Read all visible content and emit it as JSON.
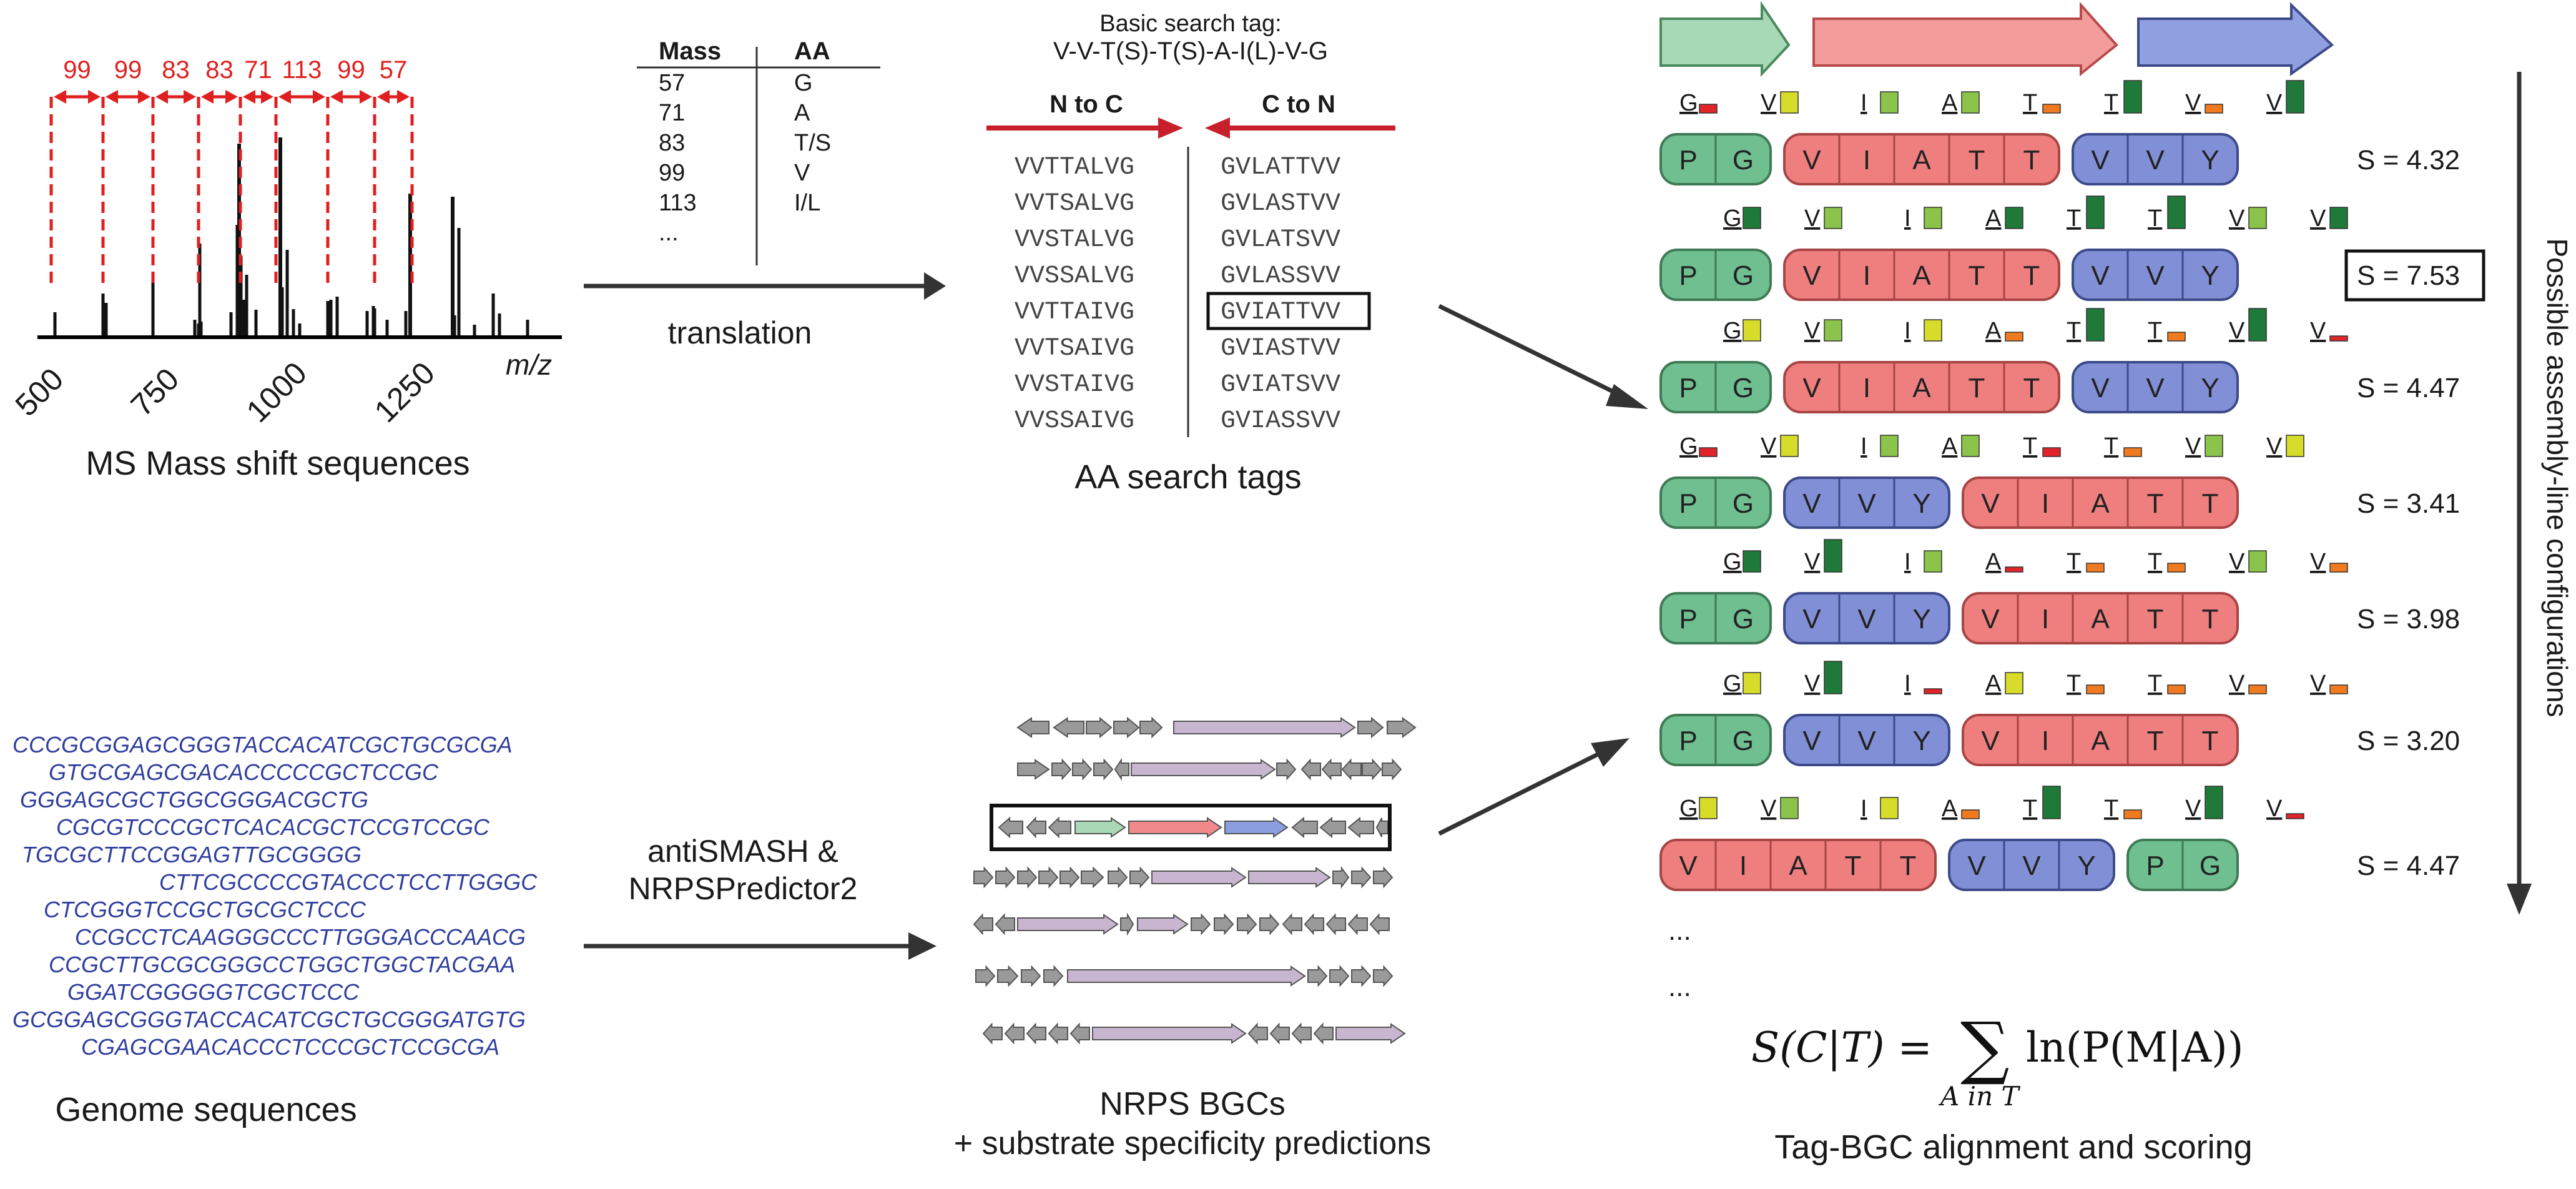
{
  "ms_panel": {
    "caption": "MS Mass shift sequences",
    "mass_shifts": [
      "99",
      "99",
      "83",
      "83",
      "71",
      "113",
      "99",
      "57"
    ],
    "axis_ticks": [
      "500",
      "750",
      "1000",
      "1250"
    ],
    "axis_label": "m/z"
  },
  "mass_table": {
    "headers": [
      "Mass",
      "AA"
    ],
    "rows": [
      [
        "57",
        "G"
      ],
      [
        "71",
        "A"
      ],
      [
        "83",
        "T/S"
      ],
      [
        "99",
        "V"
      ],
      [
        "113",
        "I/L"
      ],
      [
        "...",
        ""
      ]
    ],
    "arrow_label": "translation"
  },
  "tag_panel": {
    "title_line1": "Basic search tag:",
    "title_line2": "V-V-T(S)-T(S)-A-I(L)-V-G",
    "n_to_c_label": "N to C",
    "c_to_n_label": "C to N",
    "n_to_c_tags": [
      "VVTTALVG",
      "VVTSALVG",
      "VVSTALVG",
      "VVSSALVG",
      "VVTTAIVG",
      "VVTSAIVG",
      "VVSTAIVG",
      "VVSSAIVG"
    ],
    "c_to_n_tags": [
      "GVLATTVV",
      "GVLASTVV",
      "GVLATSVV",
      "GVLASSVV",
      "GVIATTVV",
      "GVIASTVV",
      "GVIATSVV",
      "GVIASSVV"
    ],
    "highlighted_index": 4,
    "caption": "AA search tags"
  },
  "genome_panel": {
    "caption": "Genome sequences",
    "lines": [
      "CCCGCGGAGCGGGTACCACATCGCTGCGCGA",
      "GTGCGAGCGACACCCCCGCTCCGC",
      "GGGAGCGCTGGCGGGACGCTG",
      "CGCGTCCCGCTCACACGCTCCGTCCGC",
      "TGCGCTTCCGGAGTTGCGGGG",
      "CTTCGCCCCGTACCCTCCTTGGGC",
      "CTCGGGTCCGCTGCGCTCCC",
      "CCGCCTCAAGGGCCCTTGGGACCCAACG",
      "CCGCTTGCGCGGGCCTGGCTGGCTACGAA",
      "GGATCGGGGGTCGCTCCC",
      "GCGGAGCGGGTACCACATCGCTGCGGGATGTG",
      "CGAGCGAACACCCTCCCGCTCCGCGA"
    ],
    "arrow_label_line1": "antiSMASH &",
    "arrow_label_line2": "NRPSPredictor2"
  },
  "bgc_panel": {
    "caption_line1": "NRPS BGCs",
    "caption_line2": "+ substrate specificity predictions"
  },
  "assembly_panel": {
    "side_label": "Possible assembly-line configurations",
    "caption": "Tag-BGC alignment and scoring",
    "ellipsis": [
      "...",
      "..."
    ],
    "formula_lhs": "S(C|T) =",
    "formula_sum": "∑",
    "formula_sub": "A in T",
    "formula_rhs": "ln(P(M|A))",
    "module_colors": {
      "green": "#6fbf91",
      "red": "#ef7f7f",
      "blue": "#8190d6"
    },
    "rows": [
      {
        "score": "S = 4.32",
        "boxed": false,
        "blocks": [
          {
            "color": "green",
            "residues": [
              "P",
              "G"
            ]
          },
          {
            "color": "red",
            "residues": [
              "V",
              "I",
              "A",
              "T",
              "T"
            ]
          },
          {
            "color": "blue",
            "residues": [
              "V",
              "V",
              "Y"
            ]
          }
        ]
      },
      {
        "score": "S = 7.53",
        "boxed": true,
        "blocks": [
          {
            "color": "green",
            "residues": [
              "P",
              "G"
            ]
          },
          {
            "color": "red",
            "residues": [
              "V",
              "I",
              "A",
              "T",
              "T"
            ]
          },
          {
            "color": "blue",
            "residues": [
              "V",
              "V",
              "Y"
            ]
          }
        ]
      },
      {
        "score": "S = 4.47",
        "boxed": false,
        "blocks": [
          {
            "color": "green",
            "residues": [
              "P",
              "G"
            ]
          },
          {
            "color": "red",
            "residues": [
              "V",
              "I",
              "A",
              "T",
              "T"
            ]
          },
          {
            "color": "blue",
            "residues": [
              "V",
              "V",
              "Y"
            ]
          }
        ]
      },
      {
        "score": "S = 3.41",
        "boxed": false,
        "blocks": [
          {
            "color": "green",
            "residues": [
              "P",
              "G"
            ]
          },
          {
            "color": "blue",
            "residues": [
              "V",
              "V",
              "Y"
            ]
          },
          {
            "color": "red",
            "residues": [
              "V",
              "I",
              "A",
              "T",
              "T"
            ]
          }
        ]
      },
      {
        "score": "S = 3.98",
        "boxed": false,
        "blocks": [
          {
            "color": "green",
            "residues": [
              "P",
              "G"
            ]
          },
          {
            "color": "blue",
            "residues": [
              "V",
              "V",
              "Y"
            ]
          },
          {
            "color": "red",
            "residues": [
              "V",
              "I",
              "A",
              "T",
              "T"
            ]
          }
        ]
      },
      {
        "score": "S = 3.20",
        "boxed": false,
        "blocks": [
          {
            "color": "green",
            "residues": [
              "P",
              "G"
            ]
          },
          {
            "color": "blue",
            "residues": [
              "V",
              "V",
              "Y"
            ]
          },
          {
            "color": "red",
            "residues": [
              "V",
              "I",
              "A",
              "T",
              "T"
            ]
          }
        ]
      },
      {
        "score": "S = 4.47",
        "boxed": false,
        "blocks": [
          {
            "color": "red",
            "residues": [
              "V",
              "I",
              "A",
              "T",
              "T"
            ]
          },
          {
            "color": "blue",
            "residues": [
              "V",
              "V",
              "Y"
            ]
          },
          {
            "color": "green",
            "residues": [
              "P",
              "G"
            ]
          }
        ]
      }
    ],
    "tag_rows": [
      [
        [
          "G",
          "red",
          1
        ],
        [
          "V",
          "yellow",
          2
        ],
        [
          "I",
          "lgreen",
          2
        ],
        [
          "A",
          "lgreen",
          2
        ],
        [
          "T",
          "orange",
          1
        ],
        [
          "T",
          "dgreen",
          3
        ],
        [
          "V",
          "orange",
          1
        ],
        [
          "V",
          "dgreen",
          3
        ]
      ],
      [
        [
          "G",
          "dgreen",
          2
        ],
        [
          "V",
          "lgreen",
          2
        ],
        [
          "I",
          "lgreen",
          2
        ],
        [
          "A",
          "dgreen",
          2
        ],
        [
          "T",
          "dgreen",
          3
        ],
        [
          "T",
          "dgreen",
          3
        ],
        [
          "V",
          "lgreen",
          2
        ],
        [
          "V",
          "dgreen",
          2
        ]
      ],
      [
        [
          "G",
          "yellow",
          2
        ],
        [
          "V",
          "lgreen",
          2
        ],
        [
          "I",
          "yellow",
          2
        ],
        [
          "A",
          "orange",
          1
        ],
        [
          "T",
          "dgreen",
          3
        ],
        [
          "T",
          "orange",
          1
        ],
        [
          "V",
          "dgreen",
          3
        ],
        [
          "V",
          "red",
          0
        ]
      ],
      [
        [
          "G",
          "red",
          1
        ],
        [
          "V",
          "yellow",
          2
        ],
        [
          "I",
          "lgreen",
          2
        ],
        [
          "A",
          "lgreen",
          2
        ],
        [
          "T",
          "red",
          1
        ],
        [
          "T",
          "orange",
          1
        ],
        [
          "V",
          "lgreen",
          2
        ],
        [
          "V",
          "yellow",
          2
        ]
      ],
      [
        [
          "G",
          "dgreen",
          2
        ],
        [
          "V",
          "dgreen",
          3
        ],
        [
          "I",
          "lgreen",
          2
        ],
        [
          "A",
          "red",
          0
        ],
        [
          "T",
          "orange",
          1
        ],
        [
          "T",
          "orange",
          1
        ],
        [
          "V",
          "lgreen",
          2
        ],
        [
          "V",
          "orange",
          1
        ]
      ],
      [
        [
          "G",
          "yellow",
          2
        ],
        [
          "V",
          "dgreen",
          3
        ],
        [
          "I",
          "red",
          0
        ],
        [
          "A",
          "yellow",
          2
        ],
        [
          "T",
          "orange",
          1
        ],
        [
          "T",
          "orange",
          1
        ],
        [
          "V",
          "orange",
          1
        ],
        [
          "V",
          "orange",
          1
        ]
      ],
      [
        [
          "G",
          "yellow",
          2
        ],
        [
          "V",
          "lgreen",
          2
        ],
        [
          "I",
          "yellow",
          2
        ],
        [
          "A",
          "orange",
          1
        ],
        [
          "T",
          "dgreen",
          3
        ],
        [
          "T",
          "orange",
          1
        ],
        [
          "V",
          "dgreen",
          3
        ],
        [
          "V",
          "red",
          0
        ]
      ]
    ]
  }
}
